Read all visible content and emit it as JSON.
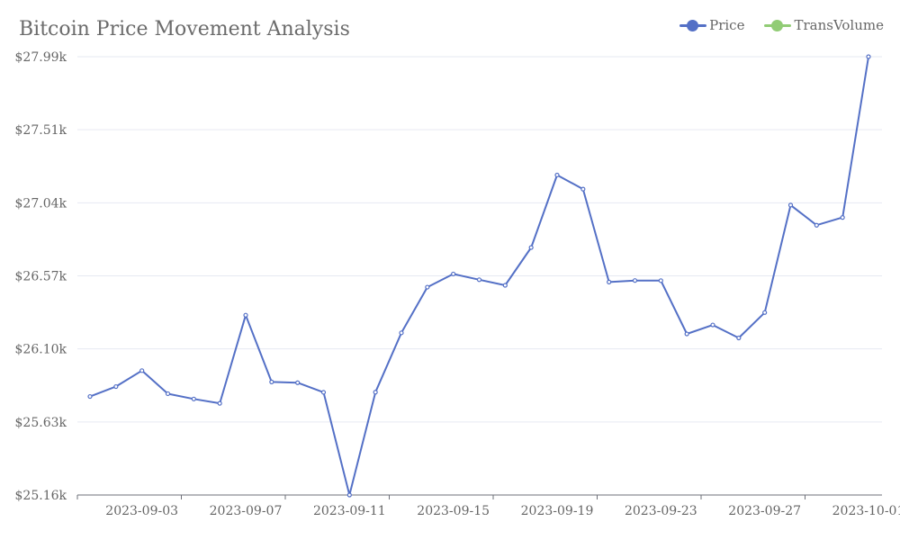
{
  "chart_data": {
    "type": "line",
    "title": "Bitcoin Price Movement Analysis",
    "xlabel": "",
    "ylabel": "",
    "x": [
      "2023-09-01",
      "2023-09-02",
      "2023-09-03",
      "2023-09-04",
      "2023-09-05",
      "2023-09-06",
      "2023-09-07",
      "2023-09-08",
      "2023-09-09",
      "2023-09-10",
      "2023-09-11",
      "2023-09-12",
      "2023-09-13",
      "2023-09-14",
      "2023-09-15",
      "2023-09-16",
      "2023-09-17",
      "2023-09-18",
      "2023-09-19",
      "2023-09-20",
      "2023-09-21",
      "2023-09-22",
      "2023-09-23",
      "2023-09-24",
      "2023-09-25",
      "2023-09-26",
      "2023-09-27",
      "2023-09-28",
      "2023-09-29",
      "2023-09-30",
      "2023-10-01"
    ],
    "x_ticks": [
      "2023-09-03",
      "2023-09-07",
      "2023-09-11",
      "2023-09-15",
      "2023-09-19",
      "2023-09-23",
      "2023-09-27",
      "2023-10-01"
    ],
    "y_ticks": [
      "$25.16k",
      "$25.63k",
      "$26.10k",
      "$26.57k",
      "$27.04k",
      "$27.51k",
      "$27.99k"
    ],
    "ylim": [
      25160,
      27990
    ],
    "legend": {
      "position": "top-right",
      "items": [
        {
          "name": "Price",
          "color": "#5470c6"
        },
        {
          "name": "TransVolume",
          "color": "#91cc75"
        }
      ]
    },
    "series": [
      {
        "name": "Price",
        "color": "#5470c6",
        "values": [
          25796,
          25860,
          25963,
          25814,
          25780,
          25752,
          26321,
          25890,
          25885,
          25823,
          25160,
          25824,
          26207,
          26502,
          26587,
          26550,
          26514,
          26758,
          27226,
          27135,
          26535,
          26545,
          26544,
          26200,
          26258,
          26174,
          26338,
          27032,
          26902,
          26952,
          27990
        ]
      }
    ]
  }
}
